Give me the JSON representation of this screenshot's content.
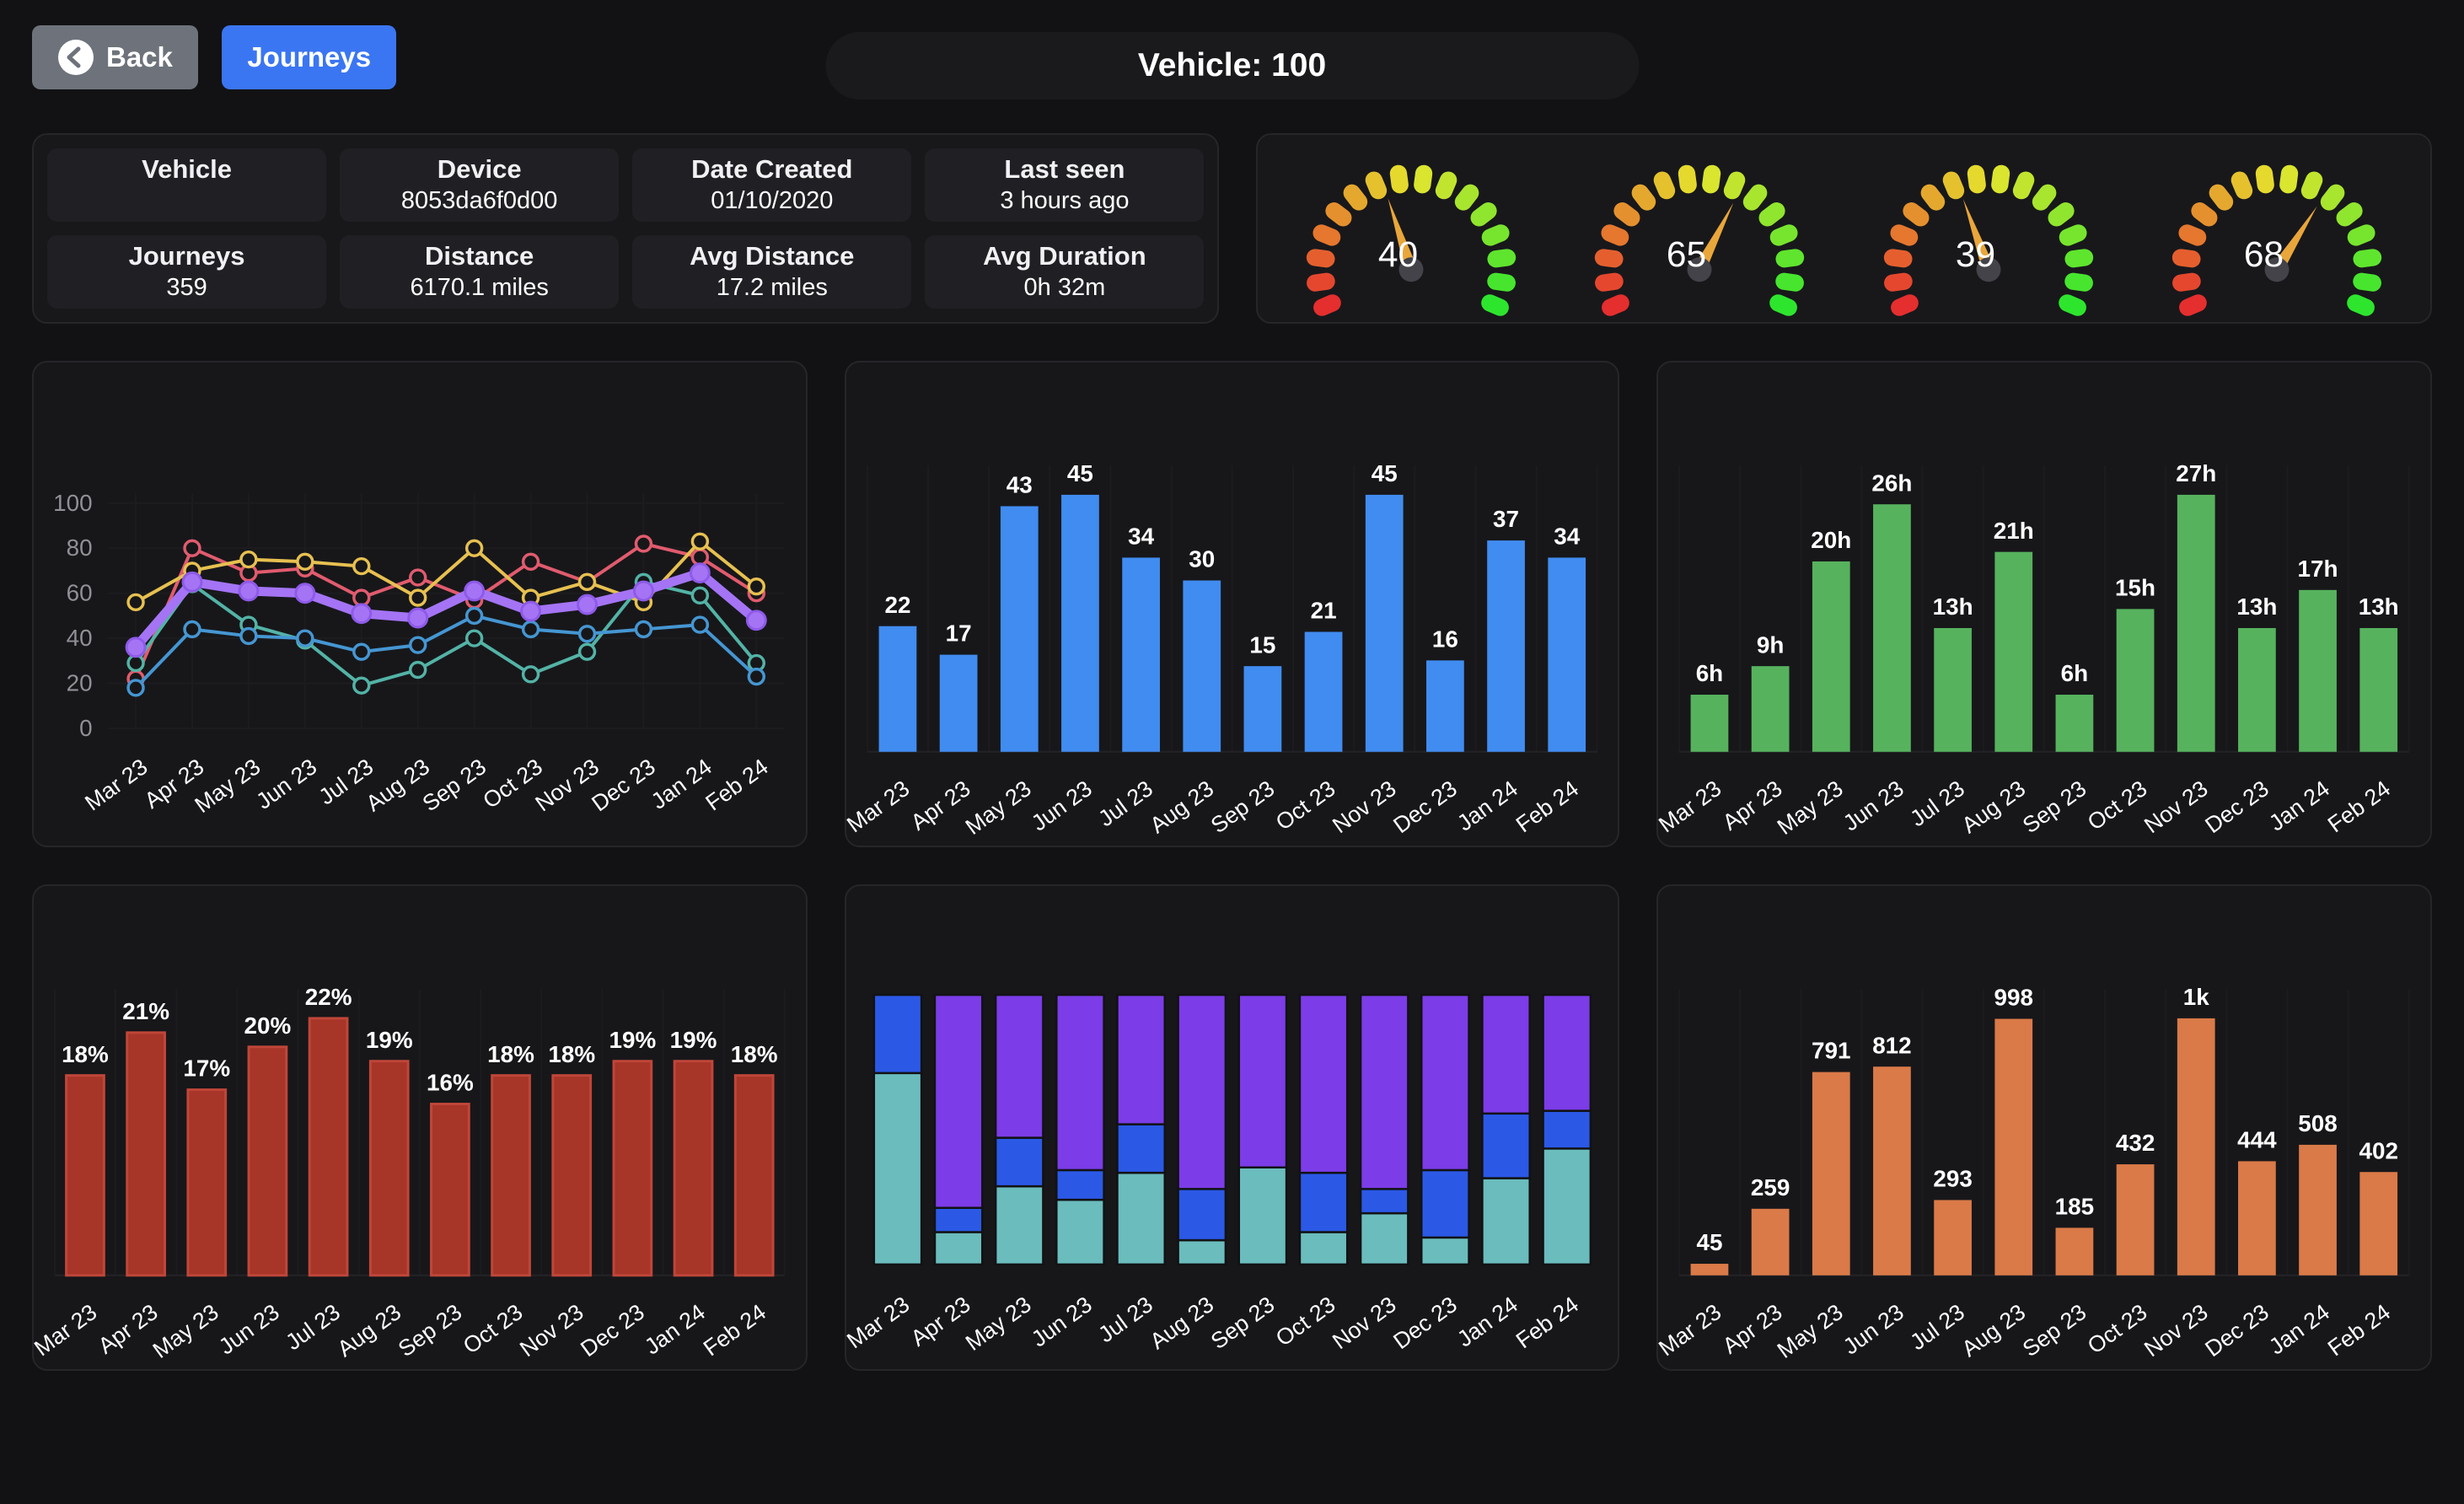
{
  "header": {
    "back_label": "Back",
    "journeys_label": "Journeys",
    "title": "Vehicle: 100"
  },
  "colors": {
    "accent_blue": "#3b76f2",
    "back_gray": "#6e737b",
    "card_bg": "#17171a",
    "inner_card_bg": "#202024",
    "needle_orange": "#e9a63b"
  },
  "info": {
    "cards": [
      {
        "label": "Vehicle",
        "value": ""
      },
      {
        "label": "Device",
        "value": "8053da6f0d00"
      },
      {
        "label": "Date Created",
        "value": "01/10/2020"
      },
      {
        "label": "Last seen",
        "value": "3 hours ago"
      },
      {
        "label": "Journeys",
        "value": "359"
      },
      {
        "label": "Distance",
        "value": "6170.1 miles"
      },
      {
        "label": "Avg Distance",
        "value": "17.2 miles"
      },
      {
        "label": "Avg Duration",
        "value": "0h 32m"
      }
    ]
  },
  "gauges": {
    "values": [
      40,
      65,
      39,
      68
    ],
    "min": 0,
    "max": 100
  },
  "chart_data": [
    {
      "type": "line",
      "categories": [
        "Mar 23",
        "Apr 23",
        "May 23",
        "Jun 23",
        "Jul 23",
        "Aug 23",
        "Sep 23",
        "Oct 23",
        "Nov 23",
        "Dec 23",
        "Jan 24",
        "Feb 24"
      ],
      "ylim": [
        0,
        100
      ],
      "yticks": [
        0,
        20,
        40,
        60,
        80,
        100
      ],
      "grid": true,
      "legend": "none",
      "series": [
        {
          "name": "series-red",
          "color": "#e15b6e",
          "values": [
            22,
            80,
            69,
            71,
            58,
            67,
            57,
            74,
            65,
            82,
            76,
            60
          ]
        },
        {
          "name": "series-gold",
          "color": "#e7c050",
          "values": [
            56,
            70,
            75,
            74,
            72,
            58,
            80,
            58,
            65,
            56,
            83,
            63
          ]
        },
        {
          "name": "series-teal",
          "color": "#53b3a6",
          "values": [
            29,
            64,
            46,
            39,
            19,
            26,
            40,
            24,
            34,
            65,
            59,
            29
          ]
        },
        {
          "name": "series-blue",
          "color": "#4596d2",
          "values": [
            18,
            44,
            41,
            40,
            34,
            37,
            50,
            44,
            42,
            44,
            46,
            23
          ]
        },
        {
          "name": "series-purple",
          "color": "#a474f5",
          "values": [
            36,
            65,
            61,
            60,
            51,
            49,
            61,
            52,
            55,
            61,
            69,
            48
          ],
          "emphasis": true
        }
      ]
    },
    {
      "type": "bar",
      "categories": [
        "Mar 23",
        "Apr 23",
        "May 23",
        "Jun 23",
        "Jul 23",
        "Aug 23",
        "Sep 23",
        "Oct 23",
        "Nov 23",
        "Dec 23",
        "Jan 24",
        "Feb 24"
      ],
      "values": [
        22,
        17,
        43,
        45,
        34,
        30,
        15,
        21,
        45,
        16,
        37,
        34
      ],
      "labels": [
        "22",
        "17",
        "43",
        "45",
        "34",
        "30",
        "15",
        "21",
        "45",
        "16",
        "37",
        "34"
      ],
      "ylim": [
        0,
        45
      ],
      "color": "#418cf0"
    },
    {
      "type": "bar",
      "categories": [
        "Mar 23",
        "Apr 23",
        "May 23",
        "Jun 23",
        "Jul 23",
        "Aug 23",
        "Sep 23",
        "Oct 23",
        "Nov 23",
        "Dec 23",
        "Jan 24",
        "Feb 24"
      ],
      "values": [
        6,
        9,
        20,
        26,
        13,
        21,
        6,
        15,
        27,
        13,
        17,
        13
      ],
      "labels": [
        "6h",
        "9h",
        "20h",
        "26h",
        "13h",
        "21h",
        "6h",
        "15h",
        "27h",
        "13h",
        "17h",
        "13h"
      ],
      "ylim": [
        0,
        27
      ],
      "color": "#57b25e"
    },
    {
      "type": "bar",
      "categories": [
        "Mar 23",
        "Apr 23",
        "May 23",
        "Jun 23",
        "Jul 23",
        "Aug 23",
        "Sep 23",
        "Oct 23",
        "Nov 23",
        "Dec 23",
        "Jan 24",
        "Feb 24"
      ],
      "values": [
        18,
        21,
        17,
        20,
        22,
        19,
        16,
        18,
        18,
        19,
        19,
        18
      ],
      "labels": [
        "18%",
        "21%",
        "17%",
        "20%",
        "22%",
        "19%",
        "16%",
        "18%",
        "18%",
        "19%",
        "19%",
        "18%"
      ],
      "ylim": [
        4,
        22
      ],
      "color": "#a73528",
      "stroke": "#bf4639"
    },
    {
      "type": "stacked-bar",
      "categories": [
        "Mar 23",
        "Apr 23",
        "May 23",
        "Jun 23",
        "Jul 23",
        "Aug 23",
        "Sep 23",
        "Oct 23",
        "Nov 23",
        "Dec 23",
        "Jan 24",
        "Feb 24"
      ],
      "unit": "percent",
      "series": [
        {
          "name": "segment-teal",
          "color": "#6bbcbd",
          "values": [
            71,
            12,
            29,
            24,
            34,
            9,
            36,
            12,
            19,
            10,
            32,
            43
          ]
        },
        {
          "name": "segment-blue",
          "color": "#2b59e6",
          "values": [
            29,
            9,
            18,
            11,
            18,
            19,
            0,
            22,
            9,
            25,
            24,
            14
          ]
        },
        {
          "name": "segment-purple",
          "color": "#7c3ce8",
          "values": [
            0,
            79,
            53,
            65,
            48,
            72,
            64,
            66,
            72,
            65,
            44,
            43
          ]
        }
      ]
    },
    {
      "type": "bar",
      "categories": [
        "Mar 23",
        "Apr 23",
        "May 23",
        "Jun 23",
        "Jul 23",
        "Aug 23",
        "Sep 23",
        "Oct 23",
        "Nov 23",
        "Dec 23",
        "Jan 24",
        "Feb 24"
      ],
      "values": [
        45,
        259,
        791,
        812,
        293,
        998,
        185,
        432,
        1000,
        444,
        508,
        402
      ],
      "labels": [
        "45",
        "259",
        "791",
        "812",
        "293",
        "998",
        "185",
        "432",
        "1k",
        "444",
        "508",
        "402"
      ],
      "ylim": [
        0,
        1000
      ],
      "color": "#da7a48"
    }
  ]
}
